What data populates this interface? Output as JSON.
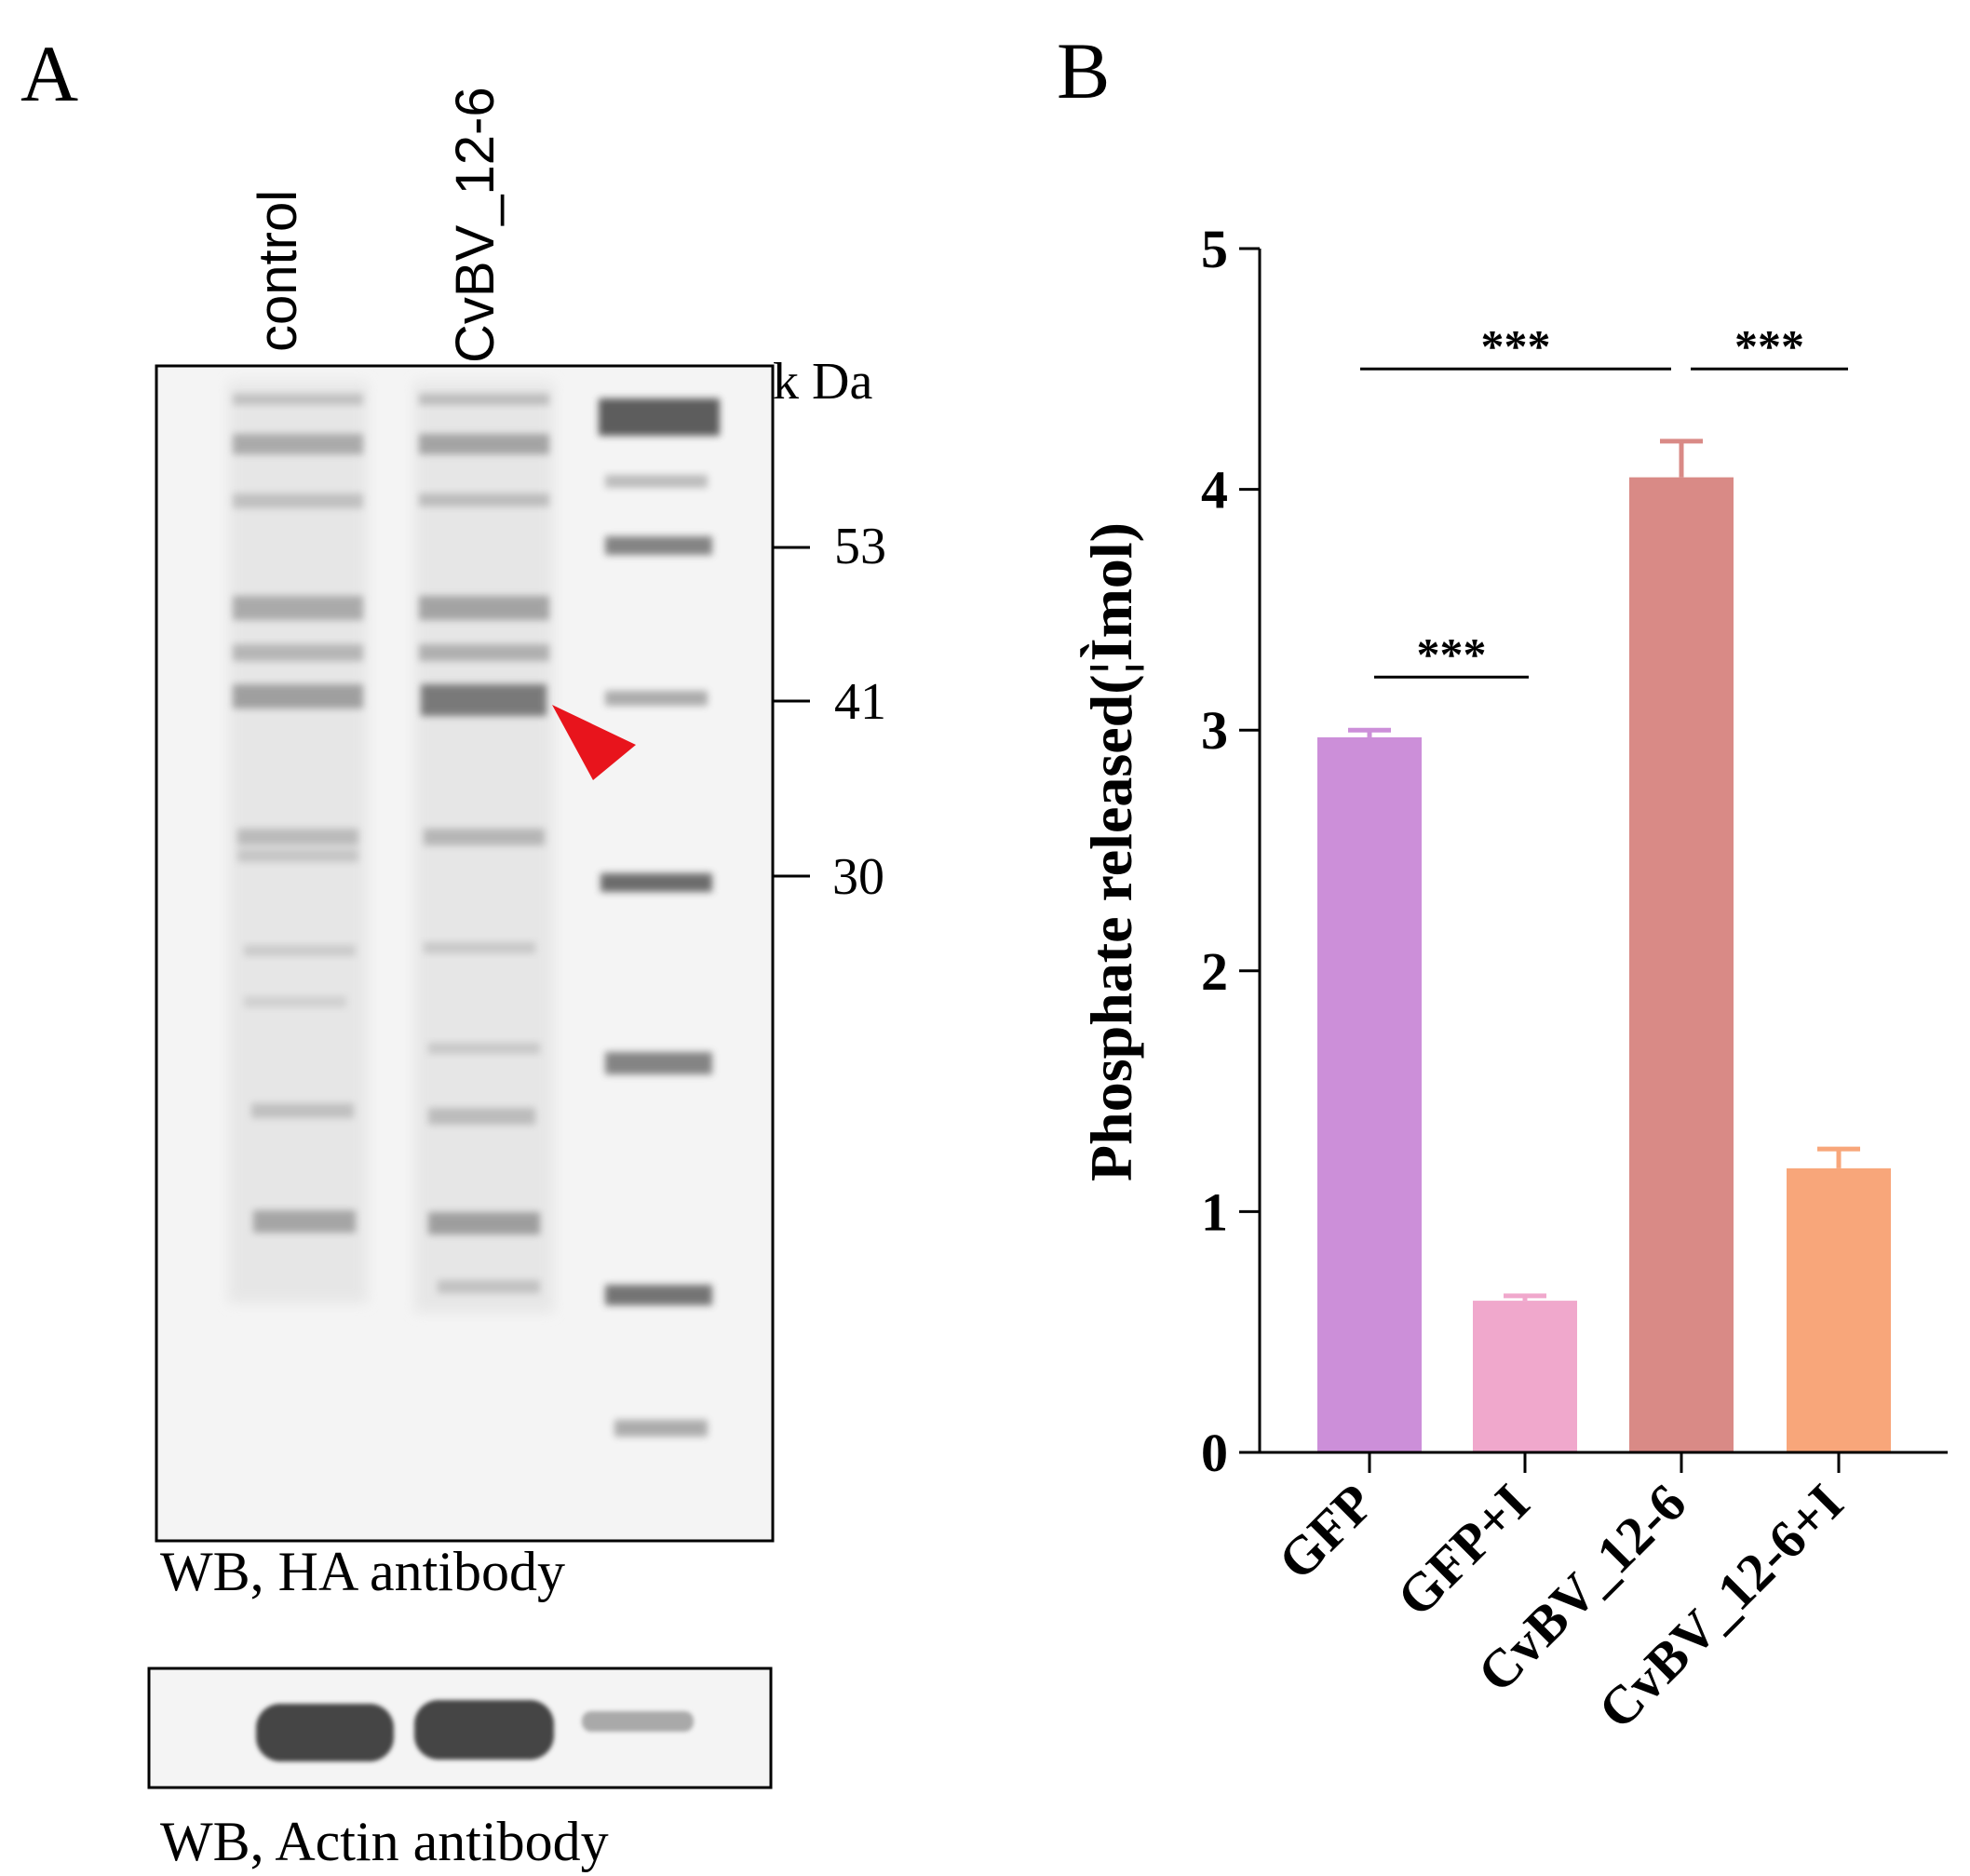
{
  "panels": {
    "a": {
      "letter": "A",
      "lanes": [
        "control",
        "CvBV_12-6"
      ],
      "unit_label": "k Da",
      "markers": [
        "53",
        "41",
        "30"
      ],
      "hint_arrow": "red-triangle-arrow",
      "main_blot_label": "WB, HA antibody",
      "actin_blot_label": "WB, Actin antibody",
      "arrow_color": "#e8141c"
    },
    "b": {
      "letter": "B"
    }
  },
  "chart_data": {
    "type": "bar",
    "title": "",
    "xlabel": "",
    "ylabel": "Phosphate released(¦Ìmol)",
    "ylim": [
      0,
      5
    ],
    "yticks": [
      "0",
      "1",
      "2",
      "3",
      "4",
      "5"
    ],
    "categories": [
      "GFP",
      "GFP+I",
      "CvBV_12-6",
      "CvBV_12-6+I"
    ],
    "values": [
      2.97,
      0.63,
      4.05,
      1.18
    ],
    "errors": [
      0.03,
      0.02,
      0.15,
      0.08
    ],
    "colors": [
      "#cc8fd9",
      "#f0a8cc",
      "#d98a86",
      "#f8a67a"
    ],
    "significance": [
      {
        "from": 0,
        "to": 1,
        "label": "***",
        "y": 3.22
      },
      {
        "from": 0,
        "to": 2,
        "label": "***",
        "y": 4.5
      },
      {
        "from": 2,
        "to": 3,
        "label": "***",
        "y": 4.5
      }
    ]
  }
}
